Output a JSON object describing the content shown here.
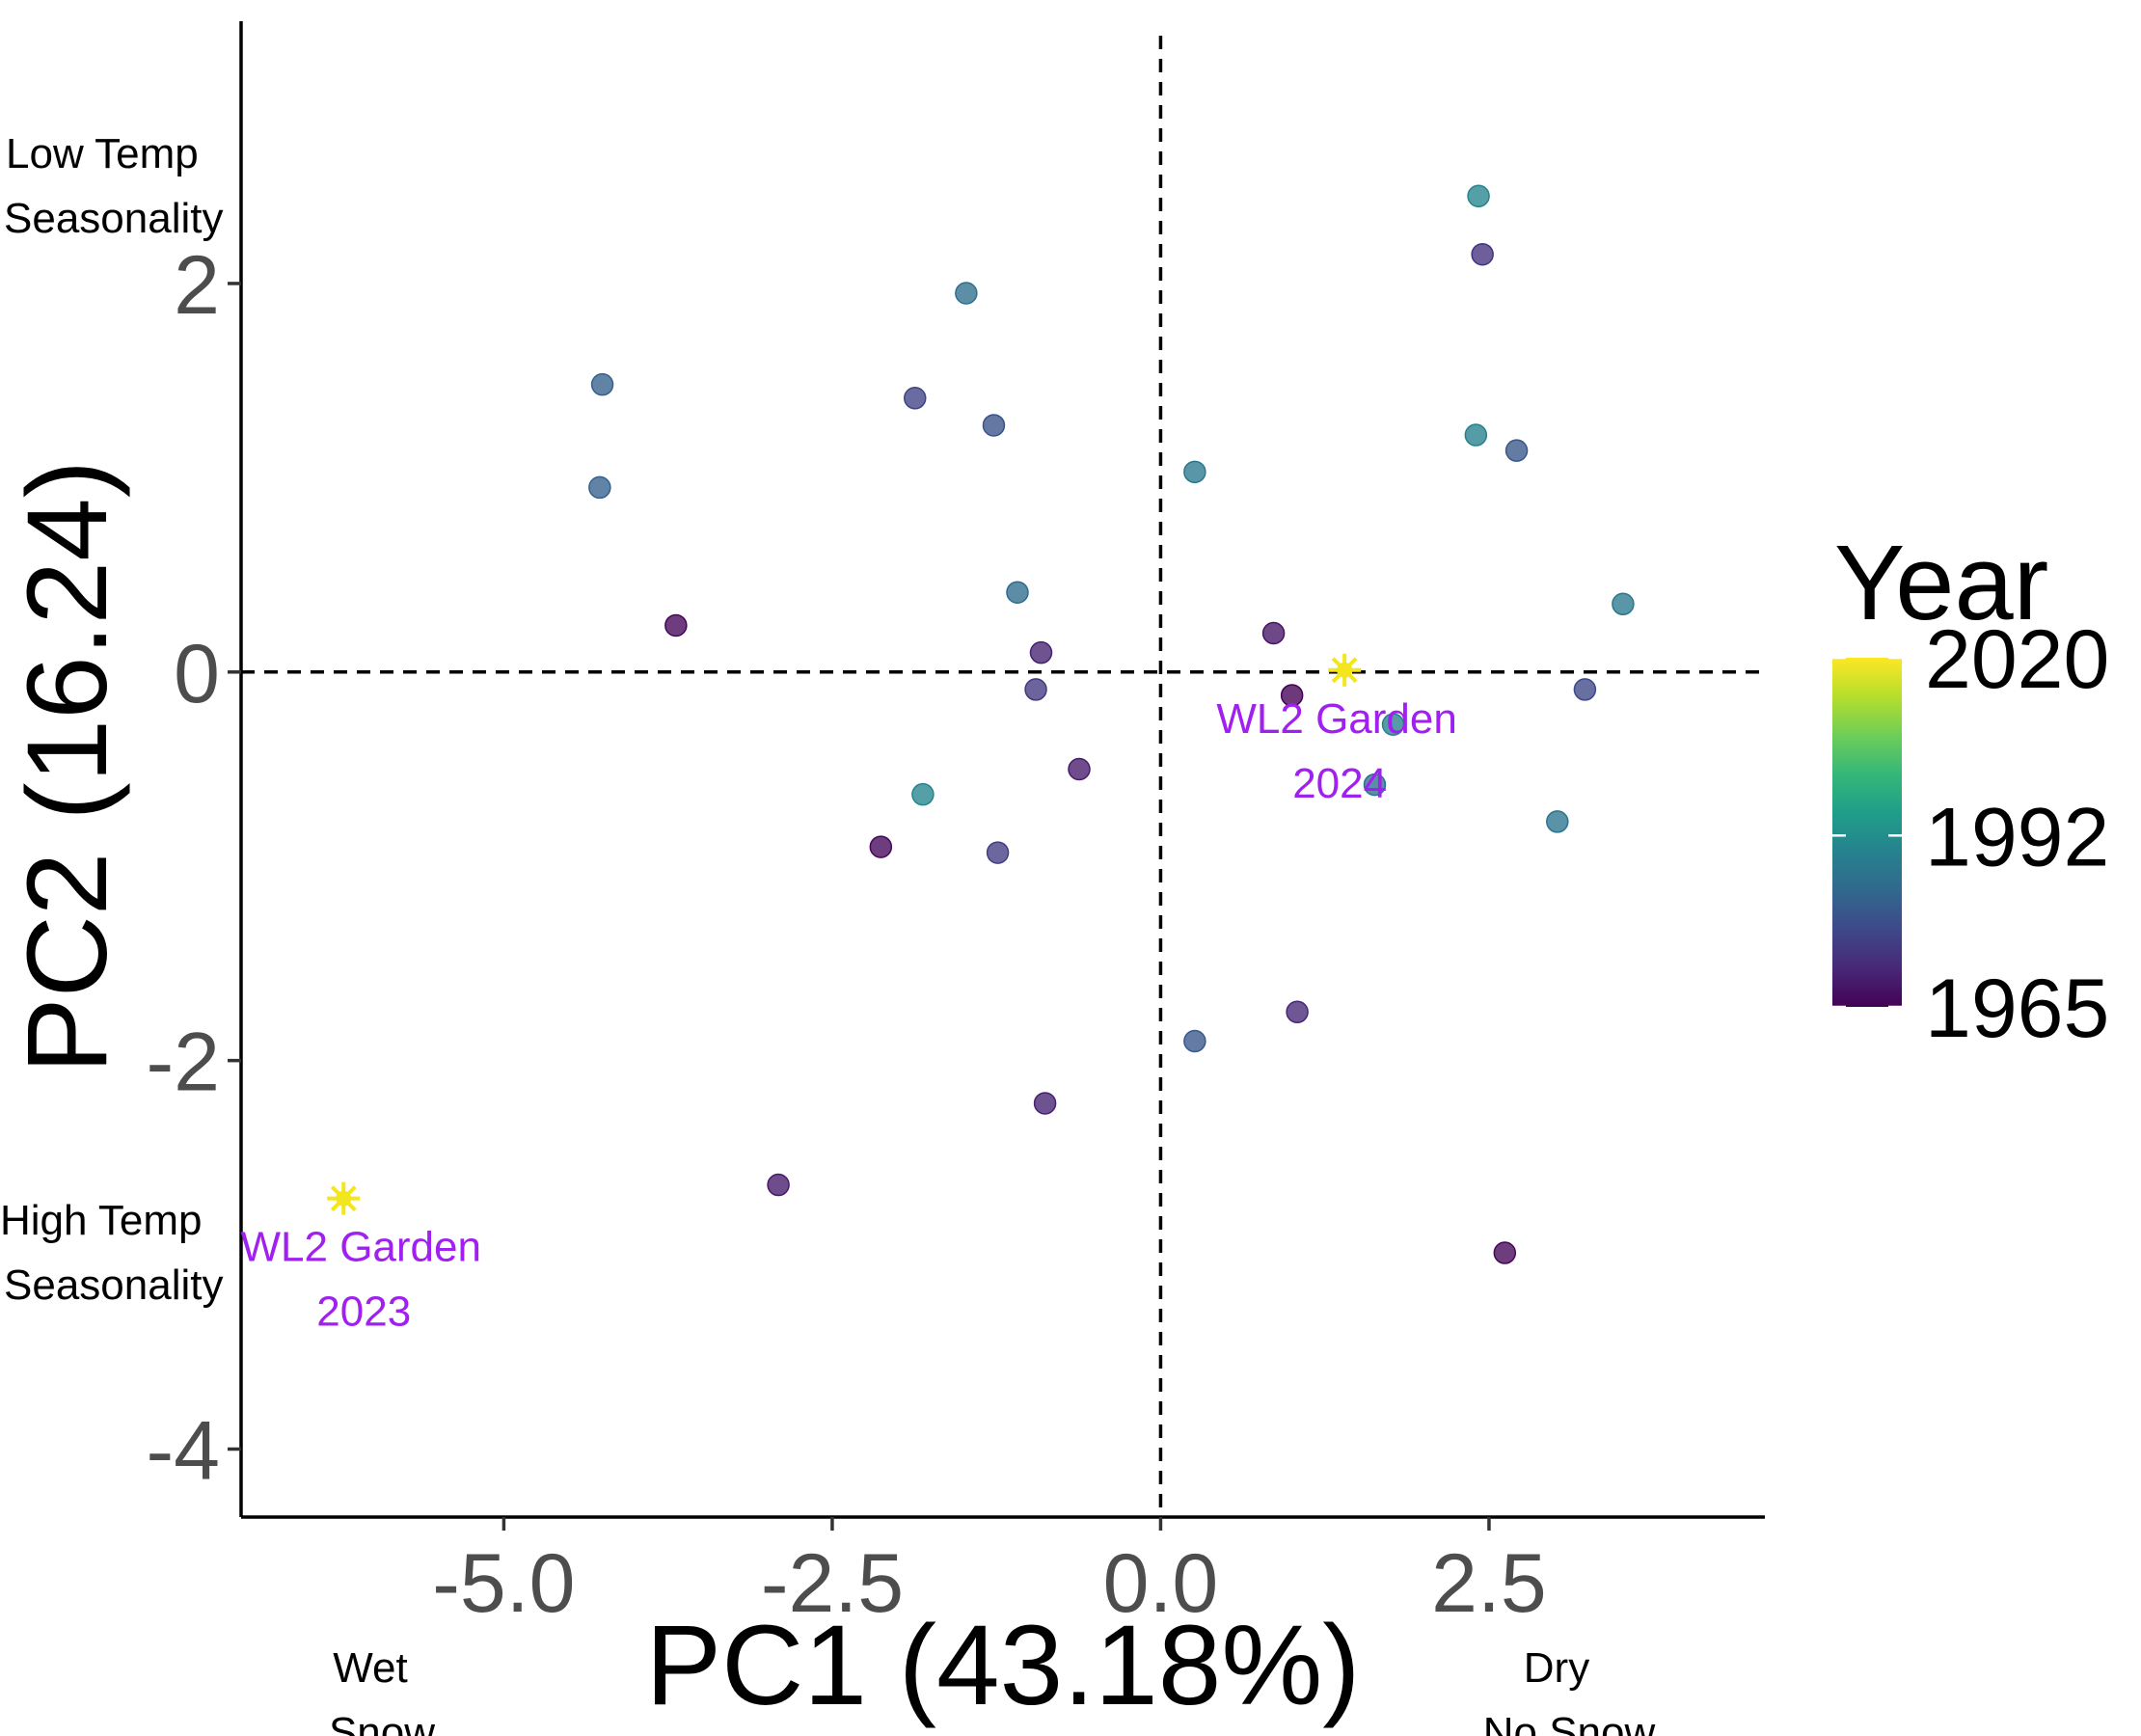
{
  "chart_data": {
    "type": "scatter",
    "xlabel": "PC1 (43.18%)",
    "ylabel": "PC2 (16.24)",
    "xlim": [
      -7.0,
      4.6
    ],
    "ylim": [
      -4.35,
      3.35
    ],
    "x_ticks": [
      -5.0,
      -2.5,
      0.0,
      2.5
    ],
    "x_tick_labels": [
      "-5.0",
      "-2.5",
      "0.0",
      "2.5"
    ],
    "y_ticks": [
      -4,
      -2,
      0,
      2
    ],
    "y_tick_labels": [
      "-4",
      "-2",
      "0",
      "2"
    ],
    "reference_lines": {
      "x": 0,
      "y": 0,
      "style": "dashed"
    },
    "grid": false,
    "legend": {
      "title": "Year",
      "type": "colorbar",
      "position": "right",
      "min": 1965,
      "max": 2020,
      "ticks": [
        1965,
        1992,
        2020
      ],
      "tick_labels": [
        "1965",
        "1992",
        "2020"
      ],
      "colors": [
        "#440154",
        "#482878",
        "#3e4989",
        "#31688e",
        "#26828e",
        "#1f9e89",
        "#35b779",
        "#6ece58",
        "#b5de2b",
        "#fde725"
      ]
    },
    "points": [
      {
        "x": 2.42,
        "y": 2.45,
        "year": 1990
      },
      {
        "x": 2.45,
        "y": 2.15,
        "year": 1973
      },
      {
        "x": -1.48,
        "y": 1.95,
        "year": 1985
      },
      {
        "x": -4.25,
        "y": 1.48,
        "year": 1982
      },
      {
        "x": -1.87,
        "y": 1.41,
        "year": 1976
      },
      {
        "x": -1.27,
        "y": 1.27,
        "year": 1979
      },
      {
        "x": 2.4,
        "y": 1.22,
        "year": 1989
      },
      {
        "x": 2.71,
        "y": 1.14,
        "year": 1980
      },
      {
        "x": 0.26,
        "y": 1.03,
        "year": 1987
      },
      {
        "x": -4.27,
        "y": 0.95,
        "year": 1982
      },
      {
        "x": 3.52,
        "y": 0.35,
        "year": 1987
      },
      {
        "x": -1.09,
        "y": 0.41,
        "year": 1984
      },
      {
        "x": -3.69,
        "y": 0.24,
        "year": 1966
      },
      {
        "x": 0.86,
        "y": 0.2,
        "year": 1968
      },
      {
        "x": -0.91,
        "y": 0.1,
        "year": 1970
      },
      {
        "x": -0.95,
        "y": -0.09,
        "year": 1974
      },
      {
        "x": 1.0,
        "y": -0.12,
        "year": 1965
      },
      {
        "x": 3.23,
        "y": -0.09,
        "year": 1977
      },
      {
        "x": 1.77,
        "y": -0.27,
        "year": 1989
      },
      {
        "x": -0.62,
        "y": -0.5,
        "year": 1969
      },
      {
        "x": 1.63,
        "y": -0.58,
        "year": 1985
      },
      {
        "x": -1.81,
        "y": -0.63,
        "year": 1990
      },
      {
        "x": 3.02,
        "y": -0.77,
        "year": 1986
      },
      {
        "x": -2.13,
        "y": -0.9,
        "year": 1966
      },
      {
        "x": -1.24,
        "y": -0.93,
        "year": 1975
      },
      {
        "x": 1.04,
        "y": -1.75,
        "year": 1971
      },
      {
        "x": 0.26,
        "y": -1.9,
        "year": 1980
      },
      {
        "x": -0.88,
        "y": -2.22,
        "year": 1970
      },
      {
        "x": -2.91,
        "y": -2.64,
        "year": 1969
      },
      {
        "x": 2.62,
        "y": -2.99,
        "year": 1966
      }
    ],
    "highlights": [
      {
        "x": 1.4,
        "y": 0.01,
        "label_line1": "WL2 Garden",
        "label_line2": "2024"
      },
      {
        "x": -6.22,
        "y": -2.71,
        "label_line1": "WL2 Garden",
        "label_line2": "2023"
      }
    ],
    "highlight_color": "#f4e61c",
    "highlight_label_color": "#a020f0",
    "annotations": {
      "y_top_line1": "Low Temp",
      "y_top_line2": "Seasonality",
      "y_bottom_line1": "High Temp",
      "y_bottom_line2": "Seasonality",
      "x_left_line1": "Wet",
      "x_left_line2": "Snow",
      "x_right_line1": "Dry",
      "x_right_line2": "No Snow"
    }
  }
}
